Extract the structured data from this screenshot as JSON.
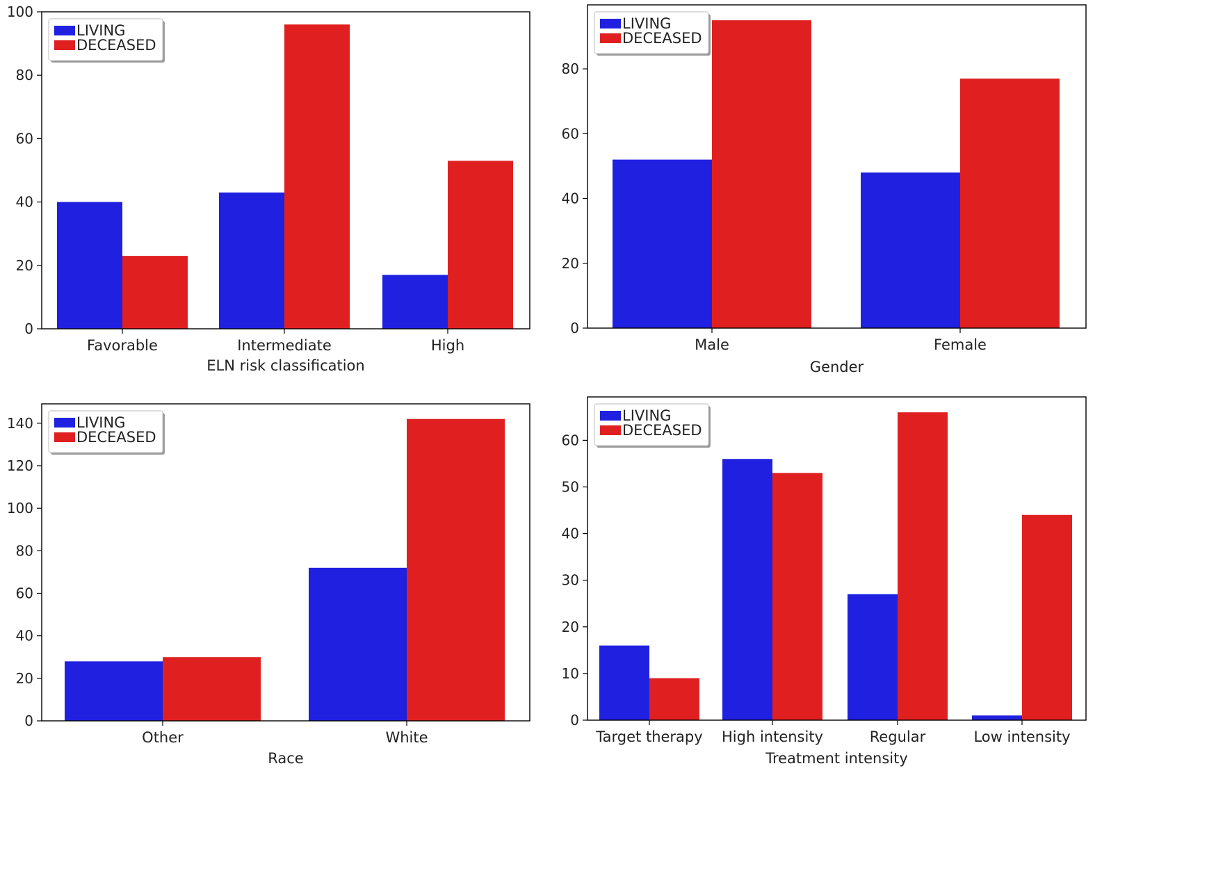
{
  "legend": {
    "items": [
      "LIVING",
      "DECEASED"
    ],
    "colors": [
      "#2020e0",
      "#e02020"
    ]
  },
  "chart_data": [
    {
      "type": "bar",
      "xlabel": "ELN risk classification",
      "ylabel": "",
      "categories": [
        "Favorable",
        "Intermediate",
        "High"
      ],
      "series": [
        {
          "name": "LIVING",
          "values": [
            40,
            43,
            17
          ]
        },
        {
          "name": "DECEASED",
          "values": [
            23,
            96,
            53
          ]
        }
      ],
      "ylim": [
        0,
        100
      ],
      "yticks": [
        0,
        20,
        40,
        60,
        80,
        100
      ],
      "legend_position": "upper-left"
    },
    {
      "type": "bar",
      "xlabel": "Gender",
      "ylabel": "",
      "categories": [
        "Male",
        "Female"
      ],
      "series": [
        {
          "name": "LIVING",
          "values": [
            52,
            48
          ]
        },
        {
          "name": "DECEASED",
          "values": [
            95,
            77
          ]
        }
      ],
      "ylim": [
        0,
        99.75
      ],
      "yticks": [
        0,
        20,
        40,
        60,
        80
      ],
      "legend_position": "upper-left"
    },
    {
      "type": "bar",
      "xlabel": "Race",
      "ylabel": "",
      "categories": [
        "Other",
        "White"
      ],
      "series": [
        {
          "name": "LIVING",
          "values": [
            28,
            72
          ]
        },
        {
          "name": "DECEASED",
          "values": [
            30,
            142
          ]
        }
      ],
      "ylim": [
        0,
        149.1
      ],
      "yticks": [
        0,
        20,
        40,
        60,
        80,
        100,
        120,
        140
      ],
      "legend_position": "upper-left"
    },
    {
      "type": "bar",
      "xlabel": "Treatment intensity",
      "ylabel": "",
      "categories": [
        "Target therapy",
        "High intensity",
        "Regular",
        "Low intensity"
      ],
      "series": [
        {
          "name": "LIVING",
          "values": [
            16,
            56,
            27,
            1
          ]
        },
        {
          "name": "DECEASED",
          "values": [
            9,
            53,
            66,
            44
          ]
        }
      ],
      "ylim": [
        0,
        69.3
      ],
      "yticks": [
        0,
        10,
        20,
        30,
        40,
        50,
        60
      ],
      "legend_position": "upper-left"
    }
  ]
}
